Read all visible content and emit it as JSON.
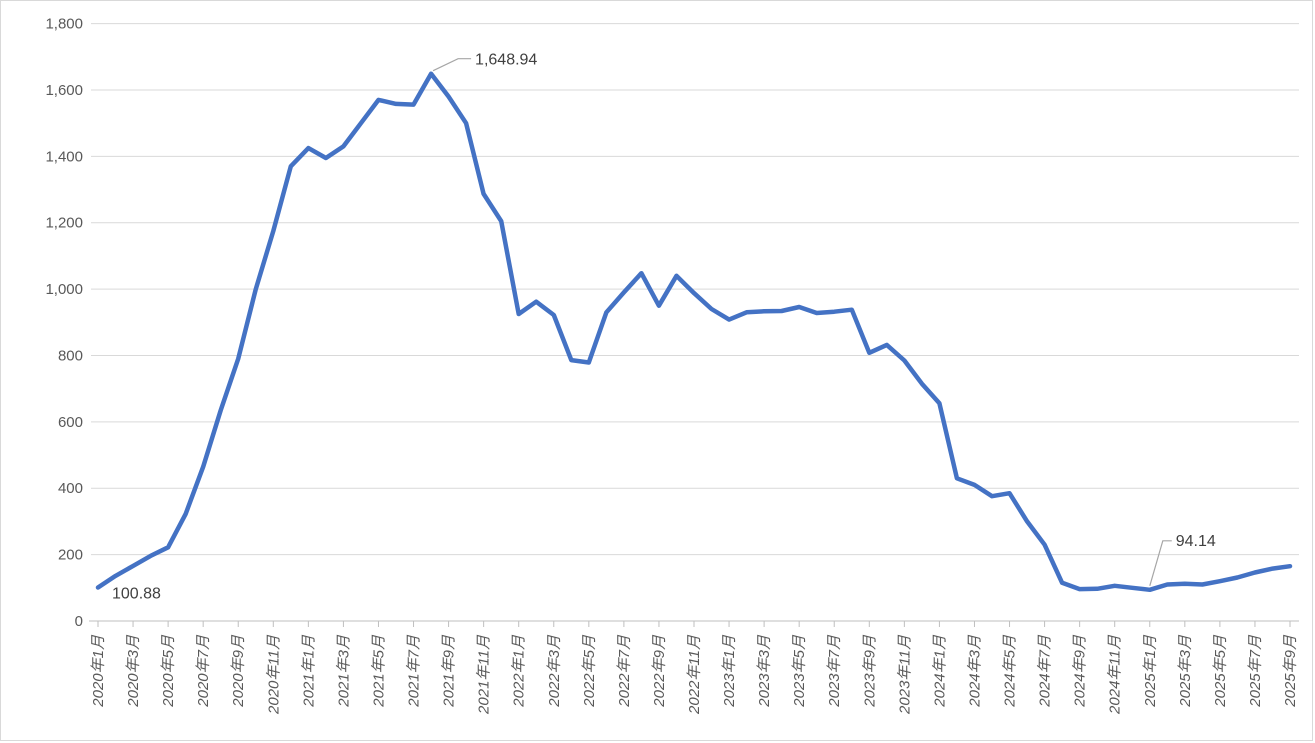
{
  "chart_data": {
    "type": "line",
    "title": "",
    "xlabel": "",
    "ylabel": "",
    "ylim": [
      0,
      1800
    ],
    "y_tick_interval": 200,
    "grid": "horizontal",
    "legend": "none",
    "series_color": "#4472C4",
    "gridline_color": "#d9d9d9",
    "axis_color": "#bfbfbf",
    "label_color": "#595959",
    "annotation_color": "#404040",
    "x": [
      "2020年1月",
      "2020年2月",
      "2020年3月",
      "2020年4月",
      "2020年5月",
      "2020年6月",
      "2020年7月",
      "2020年8月",
      "2020年9月",
      "2020年10月",
      "2020年11月",
      "2020年12月",
      "2021年1月",
      "2021年2月",
      "2021年3月",
      "2021年4月",
      "2021年5月",
      "2021年6月",
      "2021年7月",
      "2021年8月",
      "2021年9月",
      "2021年10月",
      "2021年11月",
      "2021年12月",
      "2022年1月",
      "2022年2月",
      "2022年3月",
      "2022年4月",
      "2022年5月",
      "2022年6月",
      "2022年7月",
      "2022年8月",
      "2022年9月",
      "2022年10月",
      "2022年11月",
      "2022年12月",
      "2023年1月",
      "2023年2月",
      "2023年3月",
      "2023年4月",
      "2023年5月",
      "2023年6月",
      "2023年7月",
      "2023年8月",
      "2023年9月",
      "2023年10月",
      "2023年11月",
      "2023年12月",
      "2024年1月",
      "2024年2月",
      "2024年3月",
      "2024年4月",
      "2024年5月",
      "2024年6月",
      "2024年7月",
      "2024年8月",
      "2024年9月",
      "2024年10月",
      "2024年11月",
      "2024年12月",
      "2025年1月",
      "2025年2月",
      "2025年3月",
      "2025年4月",
      "2025年5月",
      "2025年6月",
      "2025年7月",
      "2025年8月",
      "2025年9月"
    ],
    "values": [
      100.88,
      136,
      166,
      196,
      222,
      322,
      465,
      635,
      790,
      1000,
      1175,
      1370,
      1425,
      1395,
      1430,
      1500,
      1570,
      1558,
      1556,
      1648.94,
      1580,
      1500,
      1287,
      1205,
      925,
      962,
      922,
      786,
      779,
      930,
      990,
      1048,
      950,
      1040,
      988,
      940,
      908,
      930,
      933,
      934,
      946,
      928,
      932,
      938,
      808,
      832,
      785,
      715,
      656,
      430,
      410,
      376,
      385,
      300,
      230,
      115,
      96,
      97,
      106,
      100,
      94.14,
      110,
      112,
      110,
      120,
      131,
      146,
      158,
      165
    ],
    "x_tick_labels": [
      "2020年1月",
      "2020年3月",
      "2020年5月",
      "2020年7月",
      "2020年9月",
      "2020年11月",
      "2021年1月",
      "2021年3月",
      "2021年5月",
      "2021年7月",
      "2021年9月",
      "2021年11月",
      "2022年1月",
      "2022年3月",
      "2022年5月",
      "2022年7月",
      "2022年9月",
      "2022年11月",
      "2023年1月",
      "2023年3月",
      "2023年5月",
      "2023年7月",
      "2023年9月",
      "2023年11月",
      "2024年1月",
      "2024年3月",
      "2024年5月",
      "2024年7月",
      "2024年9月",
      "2024年11月",
      "2025年1月",
      "2025年3月",
      "2025年5月",
      "2025年7月",
      "2025年9月"
    ],
    "y_tick_labels": [
      "0",
      "200",
      "400",
      "600",
      "800",
      "1,000",
      "1,200",
      "1,400",
      "1,600",
      "1,800"
    ],
    "annotations": [
      {
        "id": "start",
        "text": "100.88",
        "point_index": 0
      },
      {
        "id": "peak",
        "text": "1,648.94",
        "point_index": 19
      },
      {
        "id": "low",
        "text": "94.14",
        "point_index": 60
      }
    ]
  }
}
